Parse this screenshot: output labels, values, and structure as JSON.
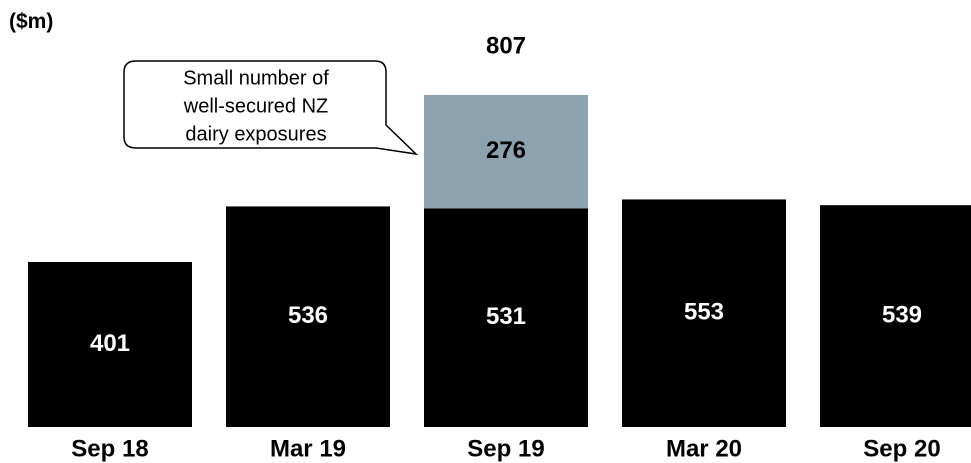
{
  "chart_data": {
    "type": "bar",
    "stacked": true,
    "unit_label": "($m)",
    "categories": [
      "Sep 18",
      "Mar 19",
      "Sep 19",
      "Mar 20",
      "Sep 20"
    ],
    "series": [
      {
        "values": [
          401,
          536,
          531,
          553,
          539
        ],
        "color": "#000000",
        "label_color": "#ffffff"
      },
      {
        "values": [
          0,
          0,
          276,
          0,
          0
        ],
        "color": "#8ca3af",
        "label_color": "#000000"
      }
    ],
    "totals": [
      null,
      null,
      807,
      null,
      null
    ],
    "callout": {
      "lines": [
        "Small number of",
        "well-secured NZ",
        "dairy exposures"
      ],
      "category": "Sep 19"
    },
    "ylim": [
      0,
      840
    ],
    "grid": false,
    "legend": "none"
  }
}
